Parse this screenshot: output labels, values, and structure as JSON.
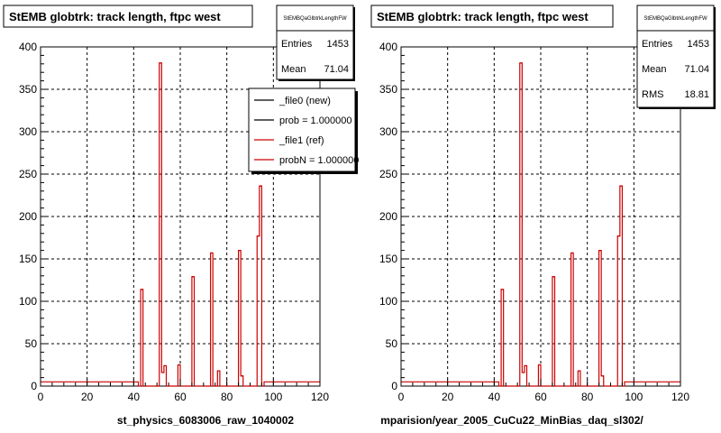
{
  "colors": {
    "background": "#ffffff",
    "axis": "#000000",
    "grid": "#000000",
    "new_hist": "#000000",
    "ref_hist": "#cc0000"
  },
  "footer_note": "",
  "chart_data": [
    {
      "type": "histogram",
      "title": "StEMB globtrk: track length, ftpc west",
      "xlabel": "st_physics_6083006_raw_1040002",
      "ylabel": "",
      "xlim": [
        0,
        120
      ],
      "ylim": [
        0,
        400
      ],
      "xticks": [
        0,
        20,
        40,
        60,
        80,
        100,
        120
      ],
      "yticks": [
        0,
        50,
        100,
        150,
        200,
        250,
        300,
        350,
        400
      ],
      "grid": true,
      "stats": {
        "name": "StEMBQaGlbtrkLengthFW",
        "rows": [
          {
            "label": "Entries",
            "value": "1453"
          },
          {
            "label": "Mean",
            "value": "71.04"
          }
        ]
      },
      "legend": {
        "placement": "top-right",
        "entries": [
          {
            "label": "_file0 (new)",
            "color": "#000000"
          },
          {
            "label": "prob = 1.000000",
            "color": "#000000"
          },
          {
            "label": "_file1 (ref)",
            "color": "#cc0000"
          },
          {
            "label": "probN = 1.000000",
            "color": "#cc0000"
          }
        ]
      },
      "bin_width": 1,
      "bins": [
        {
          "x": 42,
          "y": 0
        },
        {
          "x": 43,
          "y": 114
        },
        {
          "x": 44,
          "y": 0
        },
        {
          "x": 50,
          "y": 0
        },
        {
          "x": 51,
          "y": 381
        },
        {
          "x": 52,
          "y": 16
        },
        {
          "x": 53,
          "y": 24
        },
        {
          "x": 54,
          "y": 0
        },
        {
          "x": 58,
          "y": 0
        },
        {
          "x": 59,
          "y": 25
        },
        {
          "x": 60,
          "y": 0
        },
        {
          "x": 64,
          "y": 0
        },
        {
          "x": 65,
          "y": 129
        },
        {
          "x": 66,
          "y": 0
        },
        {
          "x": 72,
          "y": 0
        },
        {
          "x": 73,
          "y": 157
        },
        {
          "x": 74,
          "y": 0
        },
        {
          "x": 76,
          "y": 18
        },
        {
          "x": 77,
          "y": 0
        },
        {
          "x": 84,
          "y": 0
        },
        {
          "x": 85,
          "y": 160
        },
        {
          "x": 86,
          "y": 12
        },
        {
          "x": 87,
          "y": 0
        },
        {
          "x": 92,
          "y": 0
        },
        {
          "x": 93,
          "y": 177
        },
        {
          "x": 94,
          "y": 236
        },
        {
          "x": 95,
          "y": 0
        }
      ],
      "baseline_value": 5
    },
    {
      "type": "histogram",
      "title": "StEMB globtrk: track length, ftpc west",
      "xlabel": "mparision/year_2005_CuCu22_MinBias_daq_sl302/",
      "ylabel": "",
      "xlim": [
        0,
        120
      ],
      "ylim": [
        0,
        400
      ],
      "xticks": [
        0,
        20,
        40,
        60,
        80,
        100,
        120
      ],
      "yticks": [
        0,
        50,
        100,
        150,
        200,
        250,
        300,
        350,
        400
      ],
      "grid": true,
      "stats": {
        "name": "StEMBQaGlbtrkLengthFW",
        "rows": [
          {
            "label": "Entries",
            "value": "1453"
          },
          {
            "label": "Mean",
            "value": "71.04"
          },
          {
            "label": "RMS",
            "value": "18.81"
          }
        ]
      },
      "legend": null,
      "bin_width": 1,
      "bins": [
        {
          "x": 42,
          "y": 0
        },
        {
          "x": 43,
          "y": 114
        },
        {
          "x": 44,
          "y": 0
        },
        {
          "x": 50,
          "y": 0
        },
        {
          "x": 51,
          "y": 381
        },
        {
          "x": 52,
          "y": 16
        },
        {
          "x": 53,
          "y": 24
        },
        {
          "x": 54,
          "y": 0
        },
        {
          "x": 58,
          "y": 0
        },
        {
          "x": 59,
          "y": 25
        },
        {
          "x": 60,
          "y": 0
        },
        {
          "x": 64,
          "y": 0
        },
        {
          "x": 65,
          "y": 129
        },
        {
          "x": 66,
          "y": 0
        },
        {
          "x": 72,
          "y": 0
        },
        {
          "x": 73,
          "y": 157
        },
        {
          "x": 74,
          "y": 0
        },
        {
          "x": 76,
          "y": 18
        },
        {
          "x": 77,
          "y": 0
        },
        {
          "x": 84,
          "y": 0
        },
        {
          "x": 85,
          "y": 160
        },
        {
          "x": 86,
          "y": 12
        },
        {
          "x": 87,
          "y": 0
        },
        {
          "x": 92,
          "y": 0
        },
        {
          "x": 93,
          "y": 177
        },
        {
          "x": 94,
          "y": 236
        },
        {
          "x": 95,
          "y": 0
        }
      ],
      "baseline_value": 5
    }
  ]
}
